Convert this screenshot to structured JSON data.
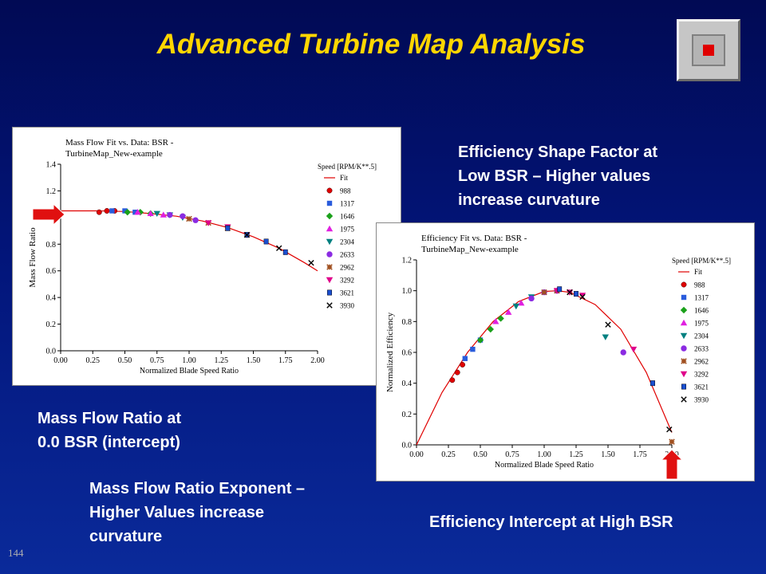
{
  "slide": {
    "title": "Advanced Turbine Map Analysis",
    "number": "144"
  },
  "captions": {
    "shape_factor": [
      "Efficiency Shape Factor at",
      "Low BSR – Higher values",
      "increase curvature"
    ],
    "intercept": [
      "Mass Flow Ratio at",
      "0.0 BSR (intercept)"
    ],
    "exponent": [
      "Mass Flow Ratio Exponent –",
      "Higher Values increase",
      "curvature"
    ],
    "high_bsr": [
      "Efficiency Intercept at High BSR"
    ]
  },
  "colors": {
    "title": "#ffd600",
    "fit_line": "#e00000",
    "arrow": "#e01010",
    "series": [
      "#e00000",
      "#2a5cdc",
      "#1aa01a",
      "#e020e0",
      "#008080",
      "#8b2be2",
      "#a05020",
      "#e0008a",
      "#1a4fd0",
      "#000000"
    ]
  },
  "chart_data": [
    {
      "type": "scatter",
      "title": "Mass Flow Fit vs. Data: BSR - TurbineMap_New-example",
      "title_lines": [
        "Mass Flow Fit vs. Data: BSR -",
        "TurbineMap_New-example"
      ],
      "xlabel": "Normalized Blade Speed Ratio",
      "ylabel": "Mass Flow Ratio",
      "xlim": [
        0,
        2.0
      ],
      "ylim": [
        0,
        1.4
      ],
      "x_ticks": [
        "0.00",
        "0.25",
        "0.50",
        "0.75",
        "1.00",
        "1.25",
        "1.50",
        "1.75",
        "2.00"
      ],
      "y_ticks": [
        "0.0",
        "0.2",
        "0.4",
        "0.6",
        "0.8",
        "1.0",
        "1.2",
        "1.4"
      ],
      "grid": false,
      "legend_position": "right",
      "legend_title": "Speed [RPM/K**.5]",
      "fit": {
        "name": "Fit",
        "x": [
          0,
          0.3,
          0.5,
          0.7,
          0.9,
          1.1,
          1.3,
          1.5,
          1.7,
          1.9,
          2.0
        ],
        "y": [
          1.05,
          1.05,
          1.045,
          1.03,
          1.01,
          0.975,
          0.925,
          0.855,
          0.77,
          0.66,
          0.6
        ]
      },
      "series": [
        {
          "name": "988",
          "x": [
            0.3,
            0.36,
            0.42
          ],
          "y": [
            1.04,
            1.05,
            1.05
          ]
        },
        {
          "name": "1317",
          "x": [
            0.4,
            0.5,
            0.58
          ],
          "y": [
            1.05,
            1.05,
            1.04
          ]
        },
        {
          "name": "1646",
          "x": [
            0.52,
            0.62,
            0.7
          ],
          "y": [
            1.04,
            1.04,
            1.03
          ]
        },
        {
          "name": "1975",
          "x": [
            0.6,
            0.7,
            0.8
          ],
          "y": [
            1.04,
            1.03,
            1.02
          ]
        },
        {
          "name": "2304",
          "x": [
            0.75,
            0.85,
            0.95
          ],
          "y": [
            1.03,
            1.02,
            1.0
          ]
        },
        {
          "name": "2633",
          "x": [
            0.85,
            0.95,
            1.05
          ],
          "y": [
            1.02,
            1.01,
            0.98
          ]
        },
        {
          "name": "2962",
          "x": [
            1.0,
            1.15,
            1.3
          ],
          "y": [
            0.99,
            0.96,
            0.92
          ]
        },
        {
          "name": "3292",
          "x": [
            1.15,
            1.3,
            1.45
          ],
          "y": [
            0.96,
            0.93,
            0.87
          ]
        },
        {
          "name": "3621",
          "x": [
            1.3,
            1.45,
            1.6,
            1.75
          ],
          "y": [
            0.92,
            0.87,
            0.82,
            0.74
          ]
        },
        {
          "name": "3930",
          "x": [
            1.45,
            1.7,
            1.95
          ],
          "y": [
            0.87,
            0.77,
            0.66
          ]
        }
      ]
    },
    {
      "type": "scatter",
      "title": "Efficiency Fit vs. Data: BSR - TurbineMap_New-example",
      "title_lines": [
        "Efficiency Fit vs. Data: BSR -",
        "TurbineMap_New-example"
      ],
      "xlabel": "Normalized Blade Speed Ratio",
      "ylabel": "Normalized Efficiency",
      "xlim": [
        0,
        2.0
      ],
      "ylim": [
        0,
        1.2
      ],
      "x_ticks": [
        "0.00",
        "0.25",
        "0.50",
        "0.75",
        "1.00",
        "1.25",
        "1.50",
        "1.75",
        "2.00"
      ],
      "y_ticks": [
        "0.0",
        "0.2",
        "0.4",
        "0.6",
        "0.8",
        "1.0",
        "1.2"
      ],
      "grid": false,
      "legend_position": "right",
      "legend_title": "Speed [RPM/K**.5]",
      "fit": {
        "name": "Fit",
        "x": [
          0,
          0.2,
          0.4,
          0.6,
          0.8,
          1.0,
          1.1,
          1.2,
          1.4,
          1.6,
          1.8,
          2.0
        ],
        "y": [
          0.0,
          0.34,
          0.6,
          0.8,
          0.93,
          0.995,
          1.0,
          0.99,
          0.91,
          0.75,
          0.47,
          0.08
        ]
      },
      "series": [
        {
          "name": "988",
          "x": [
            0.28,
            0.32,
            0.36
          ],
          "y": [
            0.42,
            0.47,
            0.52
          ]
        },
        {
          "name": "1317",
          "x": [
            0.38,
            0.44,
            0.5
          ],
          "y": [
            0.56,
            0.62,
            0.68
          ]
        },
        {
          "name": "1646",
          "x": [
            0.5,
            0.58,
            0.66
          ],
          "y": [
            0.68,
            0.75,
            0.82
          ]
        },
        {
          "name": "1975",
          "x": [
            0.62,
            0.72,
            0.82
          ],
          "y": [
            0.8,
            0.86,
            0.92
          ]
        },
        {
          "name": "2304",
          "x": [
            0.78,
            0.9,
            1.48
          ],
          "y": [
            0.9,
            0.96,
            0.7
          ]
        },
        {
          "name": "2633",
          "x": [
            0.9,
            1.0,
            1.1,
            1.62
          ],
          "y": [
            0.95,
            0.99,
            1.0,
            0.6
          ]
        },
        {
          "name": "2962",
          "x": [
            1.0,
            1.1,
            1.2,
            2.0
          ],
          "y": [
            0.99,
            1.0,
            0.99,
            0.02
          ]
        },
        {
          "name": "3292",
          "x": [
            1.1,
            1.2,
            1.3,
            1.7
          ],
          "y": [
            1.0,
            0.99,
            0.97,
            0.62
          ]
        },
        {
          "name": "3621",
          "x": [
            1.12,
            1.25,
            1.85
          ],
          "y": [
            1.01,
            0.98,
            0.4
          ]
        },
        {
          "name": "3930",
          "x": [
            1.2,
            1.3,
            1.5,
            1.98
          ],
          "y": [
            0.99,
            0.96,
            0.78,
            0.1
          ]
        }
      ]
    }
  ]
}
